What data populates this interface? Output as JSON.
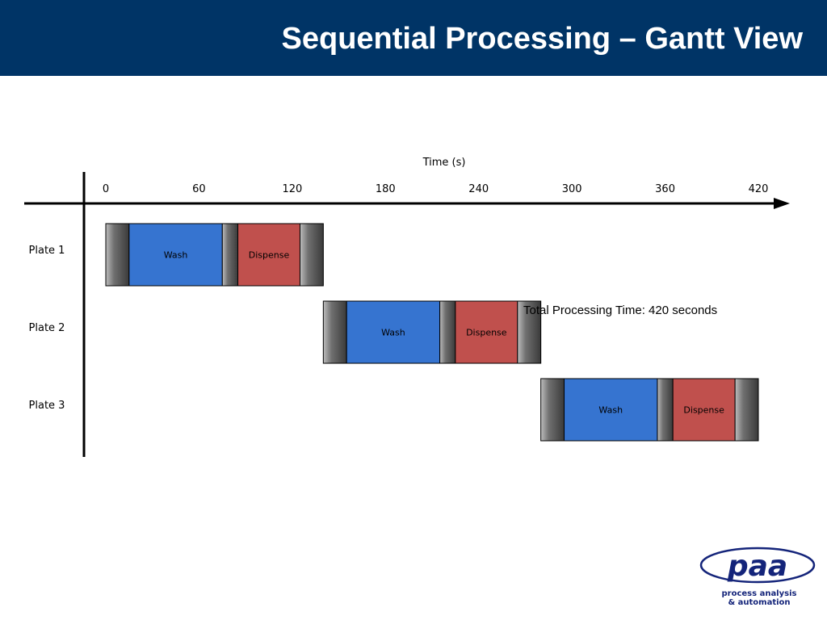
{
  "header": {
    "title": "Sequential Processing – Gantt View"
  },
  "note": "Total Processing Time: 420 seconds",
  "chart_data": {
    "type": "gantt",
    "title": "",
    "xlabel": "Time (s)",
    "ylabel": "",
    "xlim": [
      0,
      420
    ],
    "x_ticks": [
      0,
      60,
      120,
      180,
      240,
      300,
      360,
      420
    ],
    "categories": [
      "Plate 1",
      "Plate 2",
      "Plate 3"
    ],
    "tasks": [
      {
        "row": "Plate 1",
        "label": "",
        "type": "transfer",
        "start": 0,
        "end": 15
      },
      {
        "row": "Plate 1",
        "label": "Wash",
        "type": "wash",
        "start": 15,
        "end": 75
      },
      {
        "row": "Plate 1",
        "label": "",
        "type": "transfer",
        "start": 75,
        "end": 85
      },
      {
        "row": "Plate 1",
        "label": "Dispense",
        "type": "dispense",
        "start": 85,
        "end": 125
      },
      {
        "row": "Plate 1",
        "label": "",
        "type": "transfer",
        "start": 125,
        "end": 140
      },
      {
        "row": "Plate 2",
        "label": "",
        "type": "transfer",
        "start": 140,
        "end": 155
      },
      {
        "row": "Plate 2",
        "label": "Wash",
        "type": "wash",
        "start": 155,
        "end": 215
      },
      {
        "row": "Plate 2",
        "label": "",
        "type": "transfer",
        "start": 215,
        "end": 225
      },
      {
        "row": "Plate 2",
        "label": "Dispense",
        "type": "dispense",
        "start": 225,
        "end": 265
      },
      {
        "row": "Plate 2",
        "label": "",
        "type": "transfer",
        "start": 265,
        "end": 280
      },
      {
        "row": "Plate 3",
        "label": "",
        "type": "transfer",
        "start": 280,
        "end": 295
      },
      {
        "row": "Plate 3",
        "label": "Wash",
        "type": "wash",
        "start": 295,
        "end": 355
      },
      {
        "row": "Plate 3",
        "label": "",
        "type": "transfer",
        "start": 355,
        "end": 365
      },
      {
        "row": "Plate 3",
        "label": "Dispense",
        "type": "dispense",
        "start": 365,
        "end": 405
      },
      {
        "row": "Plate 3",
        "label": "",
        "type": "transfer",
        "start": 405,
        "end": 420
      }
    ],
    "colors": {
      "header": "#003466",
      "wash": "#3674d0",
      "dispense": "#c0504d",
      "transfer": "#555555"
    }
  },
  "logo": {
    "mark": "paa",
    "line1": "process analysis",
    "line2": "& automation"
  }
}
